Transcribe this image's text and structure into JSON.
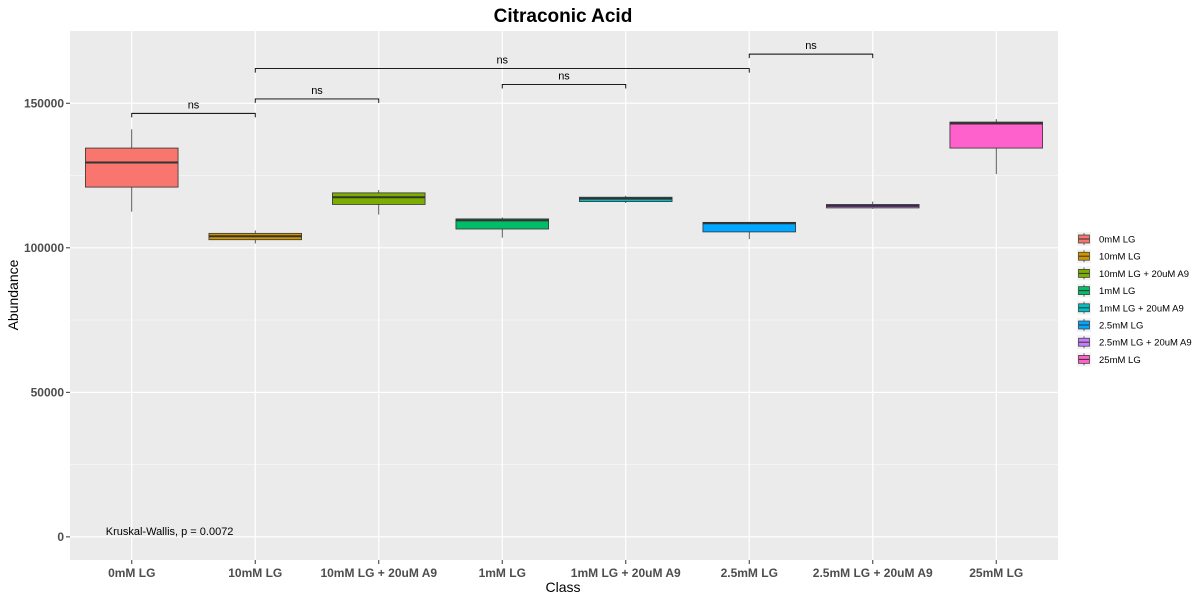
{
  "chart_data": {
    "type": "box",
    "title": "Citraconic Acid",
    "xlabel": "Class",
    "ylabel": "Abundance",
    "ylim": [
      -8000,
      175000
    ],
    "yticks": [
      0,
      50000,
      100000,
      150000
    ],
    "ytick_labels": [
      "0",
      "50000",
      "100000",
      "150000"
    ],
    "grid": true,
    "legend_position": "right",
    "categories": [
      "0mM LG",
      "10mM LG",
      "10mM LG + 20uM A9",
      "1mM LG",
      "1mM LG + 20uM A9",
      "2.5mM LG",
      "2.5mM LG + 20uM A9",
      "25mM LG"
    ],
    "boxes": [
      {
        "name": "0mM LG",
        "color": "#F8766D",
        "min": 112500,
        "q1": 121000,
        "median": 129500,
        "q3": 134500,
        "max": 141000
      },
      {
        "name": "10mM LG",
        "color": "#CD9600",
        "min": 101500,
        "q1": 102800,
        "median": 104000,
        "q3": 105000,
        "max": 106000
      },
      {
        "name": "10mM LG + 20uM A9",
        "color": "#7CAE00",
        "min": 111500,
        "q1": 115000,
        "median": 117500,
        "q3": 119000,
        "max": 120000
      },
      {
        "name": "1mM LG",
        "color": "#00BE67",
        "min": 103500,
        "q1": 106500,
        "median": 109500,
        "q3": 110000,
        "max": 110500
      },
      {
        "name": "1mM LG + 20uM A9",
        "color": "#00BFC4",
        "min": 115500,
        "q1": 116000,
        "median": 117000,
        "q3": 117500,
        "max": 118000
      },
      {
        "name": "2.5mM LG",
        "color": "#00A9FF",
        "min": 103000,
        "q1": 105500,
        "median": 108500,
        "q3": 108800,
        "max": 109000
      },
      {
        "name": "2.5mM LG + 20uM A9",
        "color": "#C77CFF",
        "min": 113500,
        "q1": 113800,
        "median": 114500,
        "q3": 115000,
        "max": 116000
      },
      {
        "name": "25mM LG",
        "color": "#FF61CC",
        "min": 125500,
        "q1": 134500,
        "median": 143000,
        "q3": 143500,
        "max": 144500
      }
    ],
    "comparisons": [
      {
        "from": "0mM LG",
        "to": "10mM LG",
        "y": 146500,
        "label": "ns"
      },
      {
        "from": "10mM LG",
        "to": "10mM LG + 20uM A9",
        "y": 151500,
        "label": "ns"
      },
      {
        "from": "1mM LG",
        "to": "1mM LG + 20uM A9",
        "y": 156500,
        "label": "ns"
      },
      {
        "from": "10mM LG",
        "to": "2.5mM LG",
        "y": 162000,
        "label": "ns"
      },
      {
        "from": "2.5mM LG",
        "to": "2.5mM LG + 20uM A9",
        "y": 167000,
        "label": "ns"
      }
    ],
    "annotations": [
      {
        "text": "Kruskal-Wallis, p = 0.0072",
        "x": "0mM LG",
        "y": 0
      }
    ]
  }
}
